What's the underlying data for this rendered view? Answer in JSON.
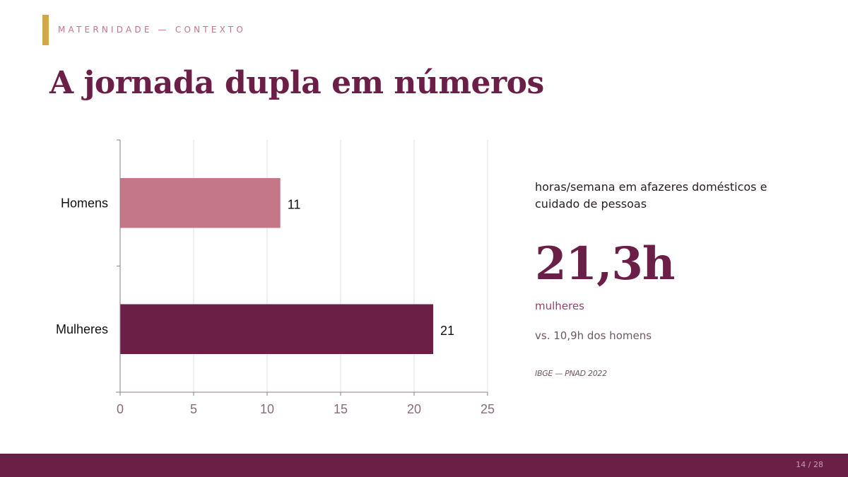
{
  "header": {
    "kicker": "MATERNIDADE — CONTEXTO",
    "title": "A jornada dupla em números"
  },
  "chart_data": {
    "type": "bar",
    "orientation": "horizontal",
    "categories": [
      "Homens",
      "Mulheres"
    ],
    "values": [
      10.9,
      21.3
    ],
    "data_labels": [
      "11",
      "21"
    ],
    "colors": [
      "#c47887",
      "#6b1f47"
    ],
    "xlim": [
      0,
      25
    ],
    "xticks": [
      0,
      5,
      10,
      15,
      20,
      25
    ],
    "grid": true,
    "title": "",
    "xlabel": "",
    "ylabel": ""
  },
  "side": {
    "description": "horas/semana em afazeres domésticos e cuidado de pessoas",
    "big_number": "21,3h",
    "big_label": "mulheres",
    "comparison": "vs. 10,9h dos homens",
    "source": "IBGE — PNAD 2022"
  },
  "footer": {
    "page": "14 / 28"
  },
  "colors": {
    "accent": "#d4a64a",
    "primary": "#6b1f47",
    "secondary": "#c47887",
    "footer": "#6b1f47"
  }
}
